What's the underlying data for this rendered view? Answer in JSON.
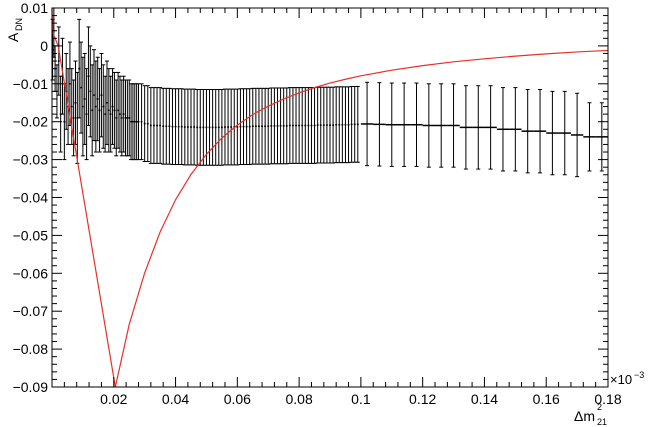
{
  "chart_data": {
    "type": "scatter",
    "xlabel": "Δm",
    "xlabel_sup": "2",
    "xlabel_sub": "21",
    "ylabel": "A",
    "ylabel_sub": "DN",
    "x_multiplier_label": "×10",
    "x_multiplier_exp": "−3",
    "xlim": [
      0.0,
      0.18
    ],
    "ylim": [
      -0.09,
      0.01
    ],
    "grid": false,
    "x_ticks": [
      {
        "value": 0.02,
        "label": "0.02"
      },
      {
        "value": 0.04,
        "label": "0.04"
      },
      {
        "value": 0.06,
        "label": "0.06"
      },
      {
        "value": 0.08,
        "label": "0.08"
      },
      {
        "value": 0.1,
        "label": "0.1"
      },
      {
        "value": 0.12,
        "label": "0.12"
      },
      {
        "value": 0.14,
        "label": "0.14"
      },
      {
        "value": 0.16,
        "label": "0.16"
      },
      {
        "value": 0.18,
        "label": "0.18"
      }
    ],
    "y_ticks": [
      {
        "value": 0.01,
        "label": "0.01"
      },
      {
        "value": 0.0,
        "label": "0"
      },
      {
        "value": -0.01,
        "label": "−0.01"
      },
      {
        "value": -0.02,
        "label": "−0.02"
      },
      {
        "value": -0.03,
        "label": "−0.03"
      },
      {
        "value": -0.04,
        "label": "−0.04"
      },
      {
        "value": -0.05,
        "label": "−0.05"
      },
      {
        "value": -0.06,
        "label": "−0.06"
      },
      {
        "value": -0.07,
        "label": "−0.07"
      },
      {
        "value": -0.08,
        "label": "−0.08"
      },
      {
        "value": -0.09,
        "label": "−0.09"
      }
    ],
    "series": [
      {
        "kind": "points_with_errors",
        "color": "#000000",
        "x": [
          0.0002,
          0.0006,
          0.001,
          0.0016,
          0.0022,
          0.0028,
          0.0034,
          0.004,
          0.0046,
          0.0052,
          0.0058,
          0.0064,
          0.007,
          0.0076,
          0.0082,
          0.0088,
          0.0094,
          0.01,
          0.0106,
          0.0112,
          0.0118,
          0.0124,
          0.013,
          0.0136,
          0.0142,
          0.0148,
          0.0154,
          0.016,
          0.0166,
          0.0172,
          0.0178,
          0.0184,
          0.019,
          0.0196,
          0.0202,
          0.0208,
          0.0214,
          0.022,
          0.0226,
          0.0232,
          0.0238,
          0.0244,
          0.025,
          0.0256,
          0.0262,
          0.0268,
          0.0274,
          0.028,
          0.029,
          0.03,
          0.031,
          0.032,
          0.033,
          0.034,
          0.035,
          0.036,
          0.037,
          0.038,
          0.039,
          0.04,
          0.041,
          0.042,
          0.043,
          0.044,
          0.045,
          0.046,
          0.047,
          0.048,
          0.049,
          0.05,
          0.051,
          0.052,
          0.053,
          0.054,
          0.055,
          0.056,
          0.057,
          0.058,
          0.059,
          0.06,
          0.061,
          0.062,
          0.063,
          0.064,
          0.065,
          0.066,
          0.067,
          0.068,
          0.069,
          0.07,
          0.071,
          0.072,
          0.073,
          0.074,
          0.075,
          0.076,
          0.077,
          0.078,
          0.079,
          0.08,
          0.081,
          0.082,
          0.083,
          0.084,
          0.085,
          0.086,
          0.087,
          0.088,
          0.089,
          0.09,
          0.091,
          0.092,
          0.093,
          0.094,
          0.095,
          0.096,
          0.097,
          0.098,
          0.099
        ],
        "y": [
          -0.001,
          0.004,
          -0.006,
          -0.012,
          -0.004,
          -0.018,
          -0.008,
          -0.02,
          -0.012,
          -0.016,
          -0.01,
          -0.016,
          -0.019,
          -0.015,
          -0.019,
          -0.006,
          -0.011,
          -0.016,
          -0.014,
          -0.018,
          -0.008,
          -0.012,
          -0.017,
          -0.013,
          -0.016,
          -0.014,
          -0.017,
          -0.013,
          -0.016,
          -0.018,
          -0.015,
          -0.017,
          -0.018,
          -0.016,
          -0.017,
          -0.019,
          -0.017,
          -0.018,
          -0.019,
          -0.018,
          -0.019,
          -0.019,
          -0.019,
          -0.02,
          -0.02,
          -0.02,
          -0.02,
          -0.02,
          -0.02,
          -0.0205,
          -0.0205,
          -0.021,
          -0.021,
          -0.021,
          -0.021,
          -0.0212,
          -0.0212,
          -0.0212,
          -0.0213,
          -0.0213,
          -0.0213,
          -0.0213,
          -0.0214,
          -0.0214,
          -0.0214,
          -0.0214,
          -0.0215,
          -0.0215,
          -0.0215,
          -0.0215,
          -0.0215,
          -0.0215,
          -0.0215,
          -0.0215,
          -0.0215,
          -0.0214,
          -0.0214,
          -0.0214,
          -0.0214,
          -0.0214,
          -0.0213,
          -0.0213,
          -0.0213,
          -0.0213,
          -0.0212,
          -0.0212,
          -0.0212,
          -0.0212,
          -0.0212,
          -0.0212,
          -0.0211,
          -0.0211,
          -0.0211,
          -0.0211,
          -0.0211,
          -0.0211,
          -0.021,
          -0.021,
          -0.021,
          -0.021,
          -0.021,
          -0.021,
          -0.021,
          -0.021,
          -0.021,
          -0.0209,
          -0.0209,
          -0.0209,
          -0.0209,
          -0.0209,
          -0.0209,
          -0.0208,
          -0.0208,
          -0.0208,
          -0.0208,
          -0.0208,
          -0.0207,
          -0.0207,
          -0.0207
        ],
        "yerr": [
          0.008,
          0.007,
          0.006,
          0.007,
          0.009,
          0.01,
          0.01,
          0.01,
          0.01,
          0.01,
          0.011,
          0.01,
          0.01,
          0.011,
          0.012,
          0.013,
          0.012,
          0.013,
          0.012,
          0.012,
          0.013,
          0.012,
          0.012,
          0.012,
          0.012,
          0.011,
          0.011,
          0.011,
          0.011,
          0.01,
          0.011,
          0.011,
          0.01,
          0.01,
          0.01,
          0.01,
          0.01,
          0.01,
          0.01,
          0.01,
          0.01,
          0.01,
          0.01,
          0.01,
          0.01,
          0.01,
          0.01,
          0.01,
          0.01,
          0.01,
          0.01,
          0.01,
          0.01,
          0.01,
          0.01,
          0.01,
          0.01,
          0.01,
          0.01,
          0.01,
          0.01,
          0.01,
          0.01,
          0.01,
          0.01,
          0.01,
          0.01,
          0.01,
          0.01,
          0.01,
          0.01,
          0.01,
          0.01,
          0.01,
          0.01,
          0.01,
          0.01,
          0.01,
          0.01,
          0.01,
          0.01,
          0.01,
          0.01,
          0.01,
          0.01,
          0.01,
          0.01,
          0.01,
          0.01,
          0.01,
          0.01,
          0.01,
          0.01,
          0.01,
          0.01,
          0.01,
          0.01,
          0.01,
          0.01,
          0.01,
          0.01,
          0.01,
          0.01,
          0.01,
          0.01,
          0.01,
          0.01,
          0.01,
          0.01,
          0.01,
          0.01,
          0.01,
          0.01,
          0.01,
          0.01,
          0.01,
          0.01,
          0.01,
          0.01
        ],
        "xerr": 0.0003
      },
      {
        "kind": "points_with_errors",
        "color": "#000000",
        "x": [
          0.102,
          0.106,
          0.11,
          0.114,
          0.118,
          0.122,
          0.126,
          0.13,
          0.134,
          0.138,
          0.142,
          0.146,
          0.15,
          0.154,
          0.158,
          0.162,
          0.166,
          0.17,
          0.174,
          0.178
        ],
        "y": [
          -0.0206,
          -0.0207,
          -0.0208,
          -0.0208,
          -0.0208,
          -0.021,
          -0.021,
          -0.021,
          -0.0215,
          -0.0215,
          -0.0215,
          -0.022,
          -0.022,
          -0.0225,
          -0.0225,
          -0.023,
          -0.023,
          -0.0235,
          -0.024,
          -0.024
        ],
        "yerr": [
          0.011,
          0.011,
          0.011,
          0.011,
          0.011,
          0.011,
          0.011,
          0.011,
          0.011,
          0.011,
          0.011,
          0.011,
          0.011,
          0.011,
          0.011,
          0.011,
          0.011,
          0.011,
          0.009,
          0.009
        ],
        "xerr": 0.002
      },
      {
        "kind": "line",
        "color": "#e8302a",
        "x": [
          0.0,
          0.0001,
          0.0005,
          0.001,
          0.002,
          0.0205,
          0.025,
          0.03,
          0.035,
          0.04,
          0.045,
          0.05,
          0.055,
          0.06,
          0.065,
          0.07,
          0.075,
          0.08,
          0.085,
          0.09,
          0.095,
          0.1,
          0.11,
          0.12,
          0.13,
          0.14,
          0.15,
          0.16,
          0.17,
          0.18
        ],
        "y": [
          0.01,
          0.006,
          0.003,
          0.002,
          0.0,
          -0.09,
          -0.0735,
          -0.0599,
          -0.0491,
          -0.0406,
          -0.0339,
          -0.0286,
          -0.0243,
          -0.0209,
          -0.0181,
          -0.0159,
          -0.014,
          -0.0124,
          -0.011,
          -0.0098,
          -0.0088,
          -0.0079,
          -0.0064,
          -0.0052,
          -0.0042,
          -0.0034,
          -0.0027,
          -0.0021,
          -0.0016,
          -0.0012
        ]
      }
    ]
  }
}
